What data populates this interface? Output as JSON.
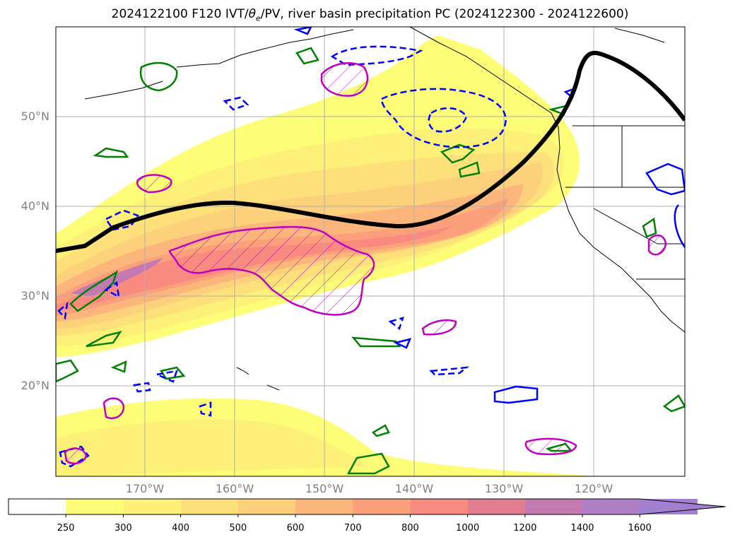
{
  "title": {
    "prefix": "2024122100 F120 IVT/",
    "theta": "θ",
    "theta_sub": "e",
    "suffix": "/PV, river basin precipitation PC (2024122300 - 2024122600)"
  },
  "map": {
    "lat_labels": [
      "50°N",
      "40°N",
      "30°N",
      "20°N"
    ],
    "lon_labels": [
      "170°W",
      "160°W",
      "150°W",
      "140°W",
      "130°W",
      "120°W"
    ]
  },
  "colorbar": {
    "ticks": [
      "250",
      "300",
      "400",
      "500",
      "600",
      "700",
      "800",
      "1000",
      "1200",
      "1400",
      "1600"
    ],
    "colors": [
      "#ffffff",
      "#fdfd77",
      "#fdf078",
      "#fde07a",
      "#fdd07c",
      "#fcb67c",
      "#fca07c",
      "#f98a80",
      "#e07e90",
      "#c47ab0",
      "#ae7fc4",
      "#a37fd0"
    ],
    "extend": "max"
  },
  "colors": {
    "jet_line": "#000000",
    "positive_contour": "#c000c0",
    "negative_contour": "#0000ff",
    "green_contour": "#008000",
    "gridline": "#b0b0b0",
    "axis_label": "#808080"
  }
}
